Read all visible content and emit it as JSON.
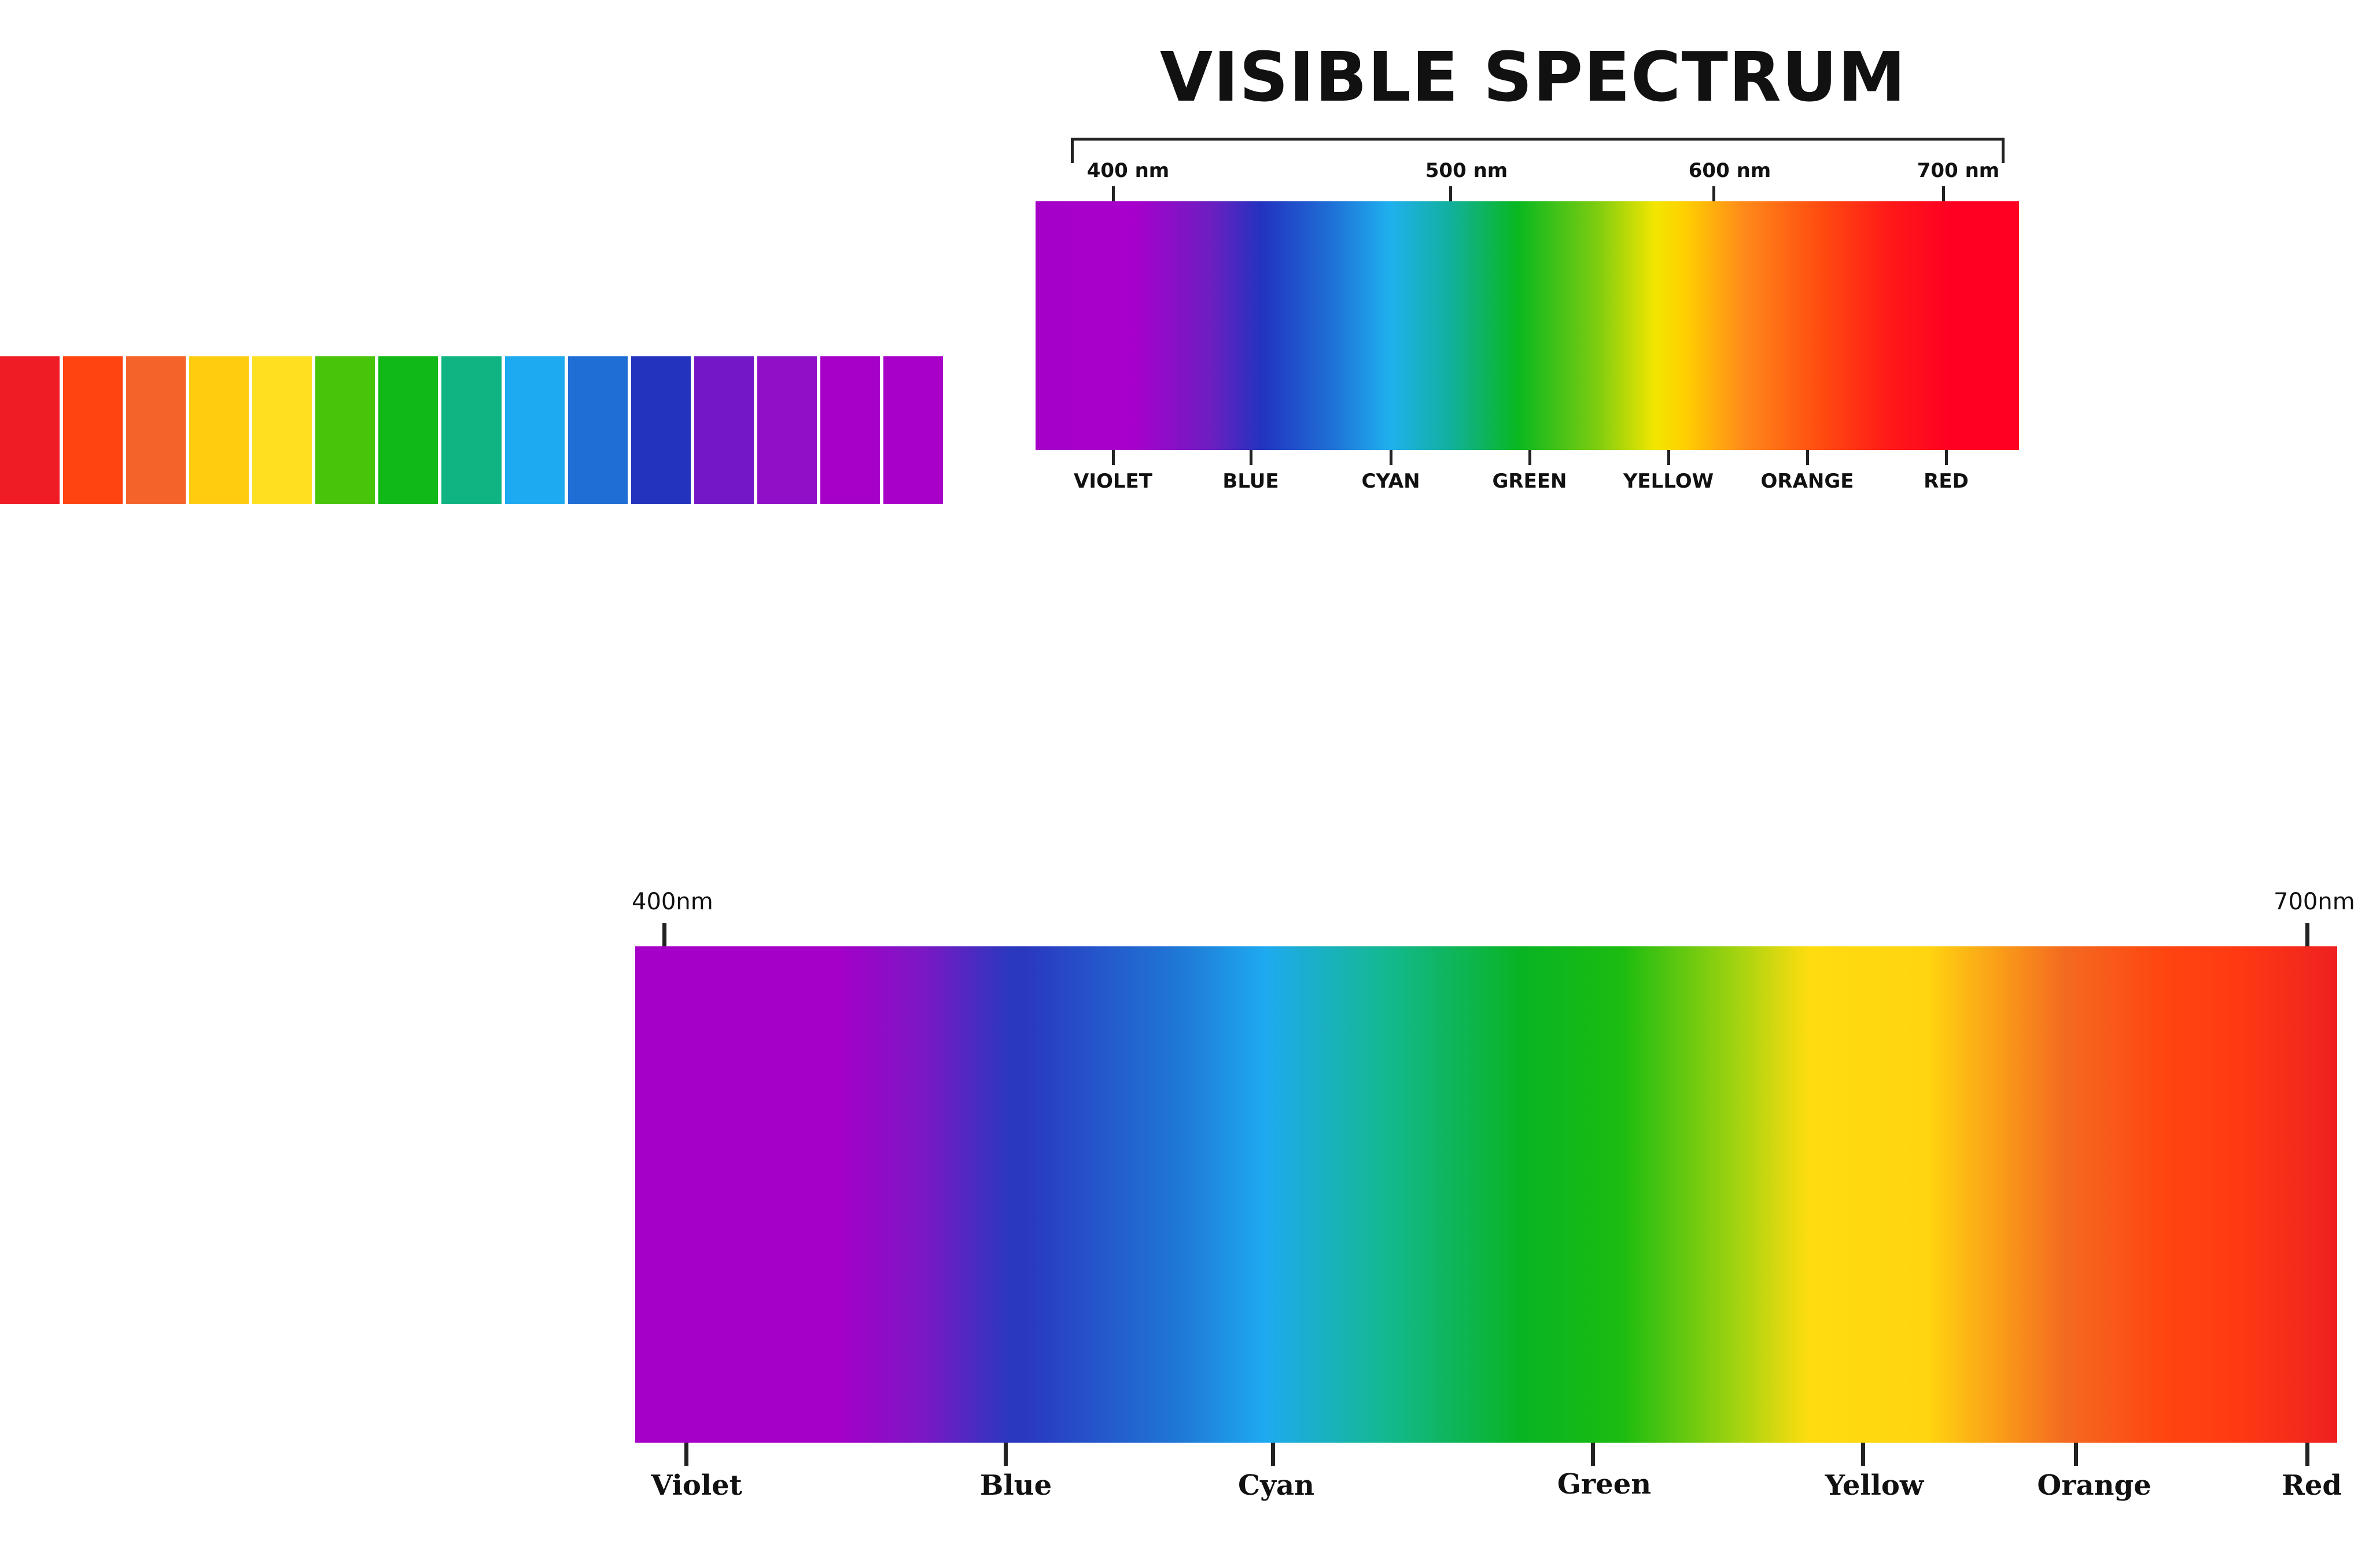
{
  "swatches": {
    "colors": [
      "#ef1c25",
      "#ff4411",
      "#f4632a",
      "#ffcc10",
      "#ffe020",
      "#48c40a",
      "#10b818",
      "#10b482",
      "#1eaaf0",
      "#1e6ed6",
      "#2433be",
      "#7218c6",
      "#9010c8",
      "#a600c8",
      "#a800c8"
    ]
  },
  "spectrum_top": {
    "title": "VISIBLE SPECTRUM",
    "wavelength_labels": [
      "400 nm",
      "500 nm",
      "600 nm",
      "700 nm"
    ],
    "color_labels": [
      "VIOLET",
      "BLUE",
      "CYAN",
      "GREEN",
      "YELLOW",
      "ORANGE",
      "RED"
    ]
  },
  "spectrum_bottom": {
    "wavelength_labels": [
      "400nm",
      "700nm"
    ],
    "color_labels": [
      "Violet",
      "Blue",
      "Cyan",
      "Green",
      "Yellow",
      "Orange",
      "Red"
    ]
  }
}
